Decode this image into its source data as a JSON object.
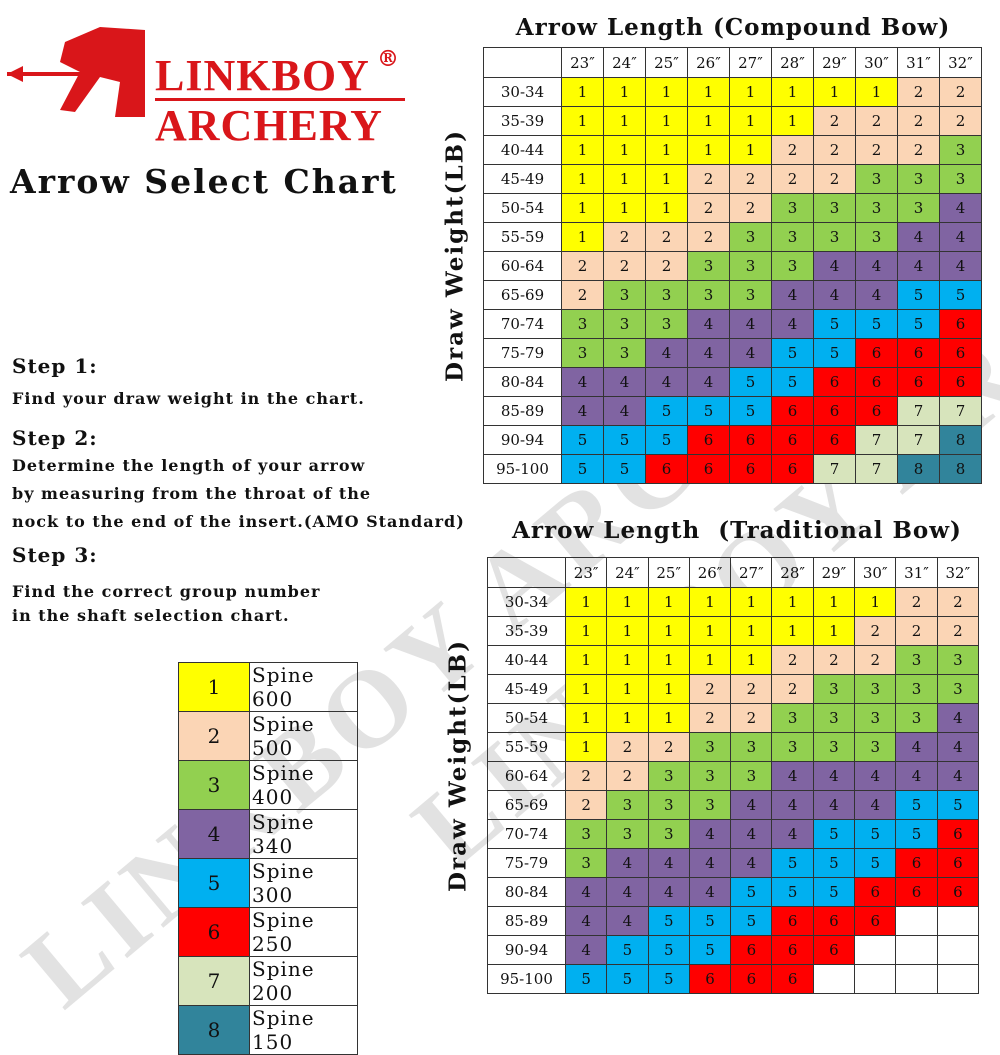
{
  "logo": {
    "line1": "LINKBOY",
    "line2": "ARCHERY",
    "registered": "®",
    "color": "#d9161a"
  },
  "title": "Arrow Select Chart",
  "steps": [
    {
      "heading": "Step 1:",
      "lines": [
        "Find your draw weight in the chart."
      ]
    },
    {
      "heading": "Step 2:",
      "lines": [
        "Determine the length of your arrow",
        "by measuring from the throat of the",
        "nock to the end of the insert.(AMO Standard)"
      ]
    },
    {
      "heading": "Step 3:",
      "lines": [
        "Find the correct group number",
        "in the shaft selection chart."
      ]
    }
  ],
  "legend": [
    {
      "group": "1",
      "label": "Spine 600",
      "color": "#ffff00"
    },
    {
      "group": "2",
      "label": "Spine 500",
      "color": "#fbd5b5"
    },
    {
      "group": "3",
      "label": "Spine 400",
      "color": "#92d050"
    },
    {
      "group": "4",
      "label": "Spine 340",
      "color": "#8064a2"
    },
    {
      "group": "5",
      "label": "Spine 300",
      "color": "#00b0f0"
    },
    {
      "group": "6",
      "label": "Spine 250",
      "color": "#ff0000"
    },
    {
      "group": "7",
      "label": "Spine 200",
      "color": "#d7e4bc"
    },
    {
      "group": "8",
      "label": "Spine 150",
      "color": "#31849b"
    }
  ],
  "watermark": "LINKBOY ARCHERY",
  "chart_data": [
    {
      "type": "table",
      "title": "Arrow Length (Compound Bow)",
      "ylabel": "Draw Weight(LB)",
      "columns": [
        "23″",
        "24″",
        "25″",
        "26″",
        "27″",
        "28″",
        "29″",
        "30″",
        "31″",
        "32″"
      ],
      "rows": [
        "30-34",
        "35-39",
        "40-44",
        "45-49",
        "50-54",
        "55-59",
        "60-64",
        "65-69",
        "70-74",
        "75-79",
        "80-84",
        "85-89",
        "90-94",
        "95-100"
      ],
      "values": [
        [
          1,
          1,
          1,
          1,
          1,
          1,
          1,
          1,
          2,
          2
        ],
        [
          1,
          1,
          1,
          1,
          1,
          1,
          2,
          2,
          2,
          2
        ],
        [
          1,
          1,
          1,
          1,
          1,
          2,
          2,
          2,
          2,
          3
        ],
        [
          1,
          1,
          1,
          2,
          2,
          2,
          2,
          3,
          3,
          3
        ],
        [
          1,
          1,
          1,
          2,
          2,
          3,
          3,
          3,
          3,
          4
        ],
        [
          1,
          2,
          2,
          2,
          3,
          3,
          3,
          3,
          4,
          4
        ],
        [
          2,
          2,
          2,
          3,
          3,
          3,
          4,
          4,
          4,
          4
        ],
        [
          2,
          3,
          3,
          3,
          3,
          4,
          4,
          4,
          5,
          5
        ],
        [
          3,
          3,
          3,
          4,
          4,
          4,
          5,
          5,
          5,
          6
        ],
        [
          3,
          3,
          4,
          4,
          4,
          5,
          5,
          6,
          6,
          6
        ],
        [
          4,
          4,
          4,
          4,
          5,
          5,
          6,
          6,
          6,
          6
        ],
        [
          4,
          4,
          5,
          5,
          5,
          6,
          6,
          6,
          7,
          7
        ],
        [
          5,
          5,
          5,
          6,
          6,
          6,
          6,
          7,
          7,
          8
        ],
        [
          5,
          5,
          6,
          6,
          6,
          6,
          7,
          7,
          8,
          8
        ]
      ]
    },
    {
      "type": "table",
      "title": "Arrow Length  (Traditional Bow)",
      "ylabel": "Draw Weight(LB)",
      "columns": [
        "23″",
        "24″",
        "25″",
        "26″",
        "27″",
        "28″",
        "29″",
        "30″",
        "31″",
        "32″"
      ],
      "rows": [
        "30-34",
        "35-39",
        "40-44",
        "45-49",
        "50-54",
        "55-59",
        "60-64",
        "65-69",
        "70-74",
        "75-79",
        "80-84",
        "85-89",
        "90-94",
        "95-100"
      ],
      "values": [
        [
          1,
          1,
          1,
          1,
          1,
          1,
          1,
          1,
          2,
          2
        ],
        [
          1,
          1,
          1,
          1,
          1,
          1,
          1,
          2,
          2,
          2
        ],
        [
          1,
          1,
          1,
          1,
          1,
          2,
          2,
          2,
          3,
          3
        ],
        [
          1,
          1,
          1,
          2,
          2,
          2,
          3,
          3,
          3,
          3
        ],
        [
          1,
          1,
          1,
          2,
          2,
          3,
          3,
          3,
          3,
          4
        ],
        [
          1,
          2,
          2,
          3,
          3,
          3,
          3,
          3,
          4,
          4
        ],
        [
          2,
          2,
          3,
          3,
          3,
          4,
          4,
          4,
          4,
          4
        ],
        [
          2,
          3,
          3,
          3,
          4,
          4,
          4,
          4,
          5,
          5
        ],
        [
          3,
          3,
          3,
          4,
          4,
          4,
          5,
          5,
          5,
          6
        ],
        [
          3,
          4,
          4,
          4,
          4,
          5,
          5,
          5,
          6,
          6
        ],
        [
          4,
          4,
          4,
          4,
          5,
          5,
          5,
          6,
          6,
          6
        ],
        [
          4,
          4,
          5,
          5,
          5,
          6,
          6,
          6,
          null,
          null
        ],
        [
          4,
          5,
          5,
          5,
          6,
          6,
          6,
          null,
          null,
          null
        ],
        [
          5,
          5,
          5,
          6,
          6,
          6,
          null,
          null,
          null,
          null
        ]
      ]
    }
  ]
}
